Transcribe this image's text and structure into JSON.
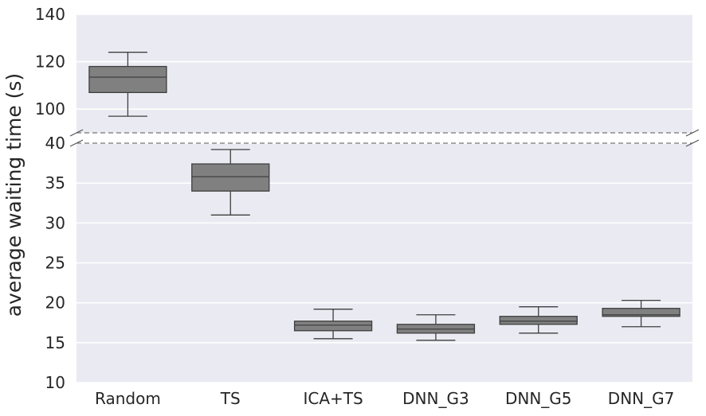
{
  "chart_data": {
    "type": "box",
    "ylabel": "average waiting time (s)",
    "xlabel": "",
    "categories": [
      "Random",
      "TS",
      "ICA+TS",
      "DNN_G3",
      "DNN_G5",
      "DNN_G7"
    ],
    "y_axis_break": {
      "upper_range": [
        90,
        140
      ],
      "lower_range": [
        10,
        40
      ],
      "upper_ticks": [
        "140",
        "120",
        "100"
      ],
      "lower_ticks": [
        "40",
        "35",
        "30",
        "25",
        "20",
        "15",
        "10"
      ]
    },
    "boxes": [
      {
        "category": "Random",
        "whisker_low": 97,
        "q1": 107,
        "median": 113.5,
        "q3": 118,
        "whisker_high": 124
      },
      {
        "category": "TS",
        "whisker_low": 31,
        "q1": 34,
        "median": 35.8,
        "q3": 37.4,
        "whisker_high": 39.2
      },
      {
        "category": "ICA+TS",
        "whisker_low": 15.5,
        "q1": 16.5,
        "median": 17.2,
        "q3": 17.7,
        "whisker_high": 19.2
      },
      {
        "category": "DNN_G3",
        "whisker_low": 15.3,
        "q1": 16.2,
        "median": 16.7,
        "q3": 17.3,
        "whisker_high": 18.5
      },
      {
        "category": "DNN_G5",
        "whisker_low": 16.2,
        "q1": 17.3,
        "median": 17.7,
        "q3": 18.3,
        "whisker_high": 19.5
      },
      {
        "category": "DNN_G7",
        "whisker_low": 17.0,
        "q1": 18.3,
        "median": 18.5,
        "q3": 19.3,
        "whisker_high": 20.3
      }
    ],
    "grid": true,
    "legend": "none"
  },
  "colors": {
    "plot_background": "#eaeaf2",
    "grid": "#ffffff",
    "box_fill": "#808080",
    "box_stroke": "#3f3f3f",
    "break_line": "#555555",
    "text": "#262626"
  }
}
